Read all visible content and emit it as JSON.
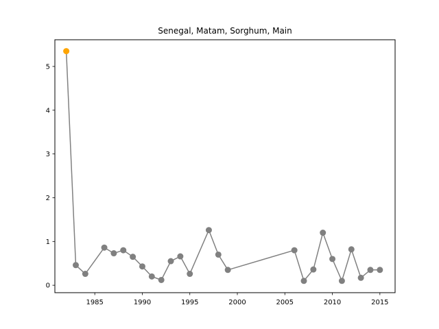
{
  "chart_data": {
    "type": "line",
    "title": "Senegal, Matam, Sorghum, Main",
    "xlabel": "",
    "ylabel": "",
    "xlim": [
      1980.8,
      2016.6
    ],
    "ylim": [
      -0.17,
      5.61
    ],
    "xticks": [
      1985,
      1990,
      1995,
      2000,
      2005,
      2010,
      2015
    ],
    "yticks": [
      0,
      1,
      2,
      3,
      4,
      5
    ],
    "grid": false,
    "legend": "none",
    "colors": {
      "line": "#808080",
      "marker": "#808080",
      "highlight": "#ffa500",
      "axes": "#000000"
    },
    "series": [
      {
        "x": [
          1982,
          1983,
          1984,
          1986,
          1987,
          1988,
          1989,
          1990,
          1991,
          1992,
          1993,
          1994,
          1995,
          1997,
          1998,
          1999,
          2006,
          2007,
          2008,
          2009,
          2010,
          2011,
          2012,
          2013,
          2014,
          2015
        ],
        "y": [
          5.35,
          0.46,
          0.26,
          0.86,
          0.73,
          0.8,
          0.65,
          0.43,
          0.2,
          0.12,
          0.55,
          0.66,
          0.26,
          1.26,
          0.7,
          0.35,
          0.8,
          0.1,
          0.36,
          1.2,
          0.6,
          0.1,
          0.82,
          0.17,
          0.35,
          0.35
        ]
      }
    ],
    "highlight_points": [
      {
        "x": 1982,
        "y": 5.35
      }
    ]
  }
}
